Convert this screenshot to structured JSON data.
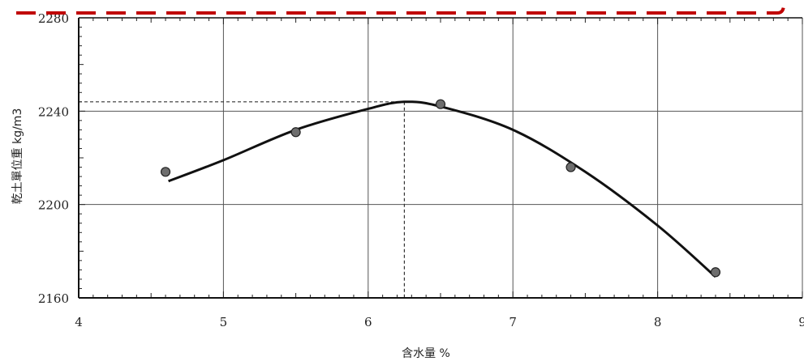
{
  "chart_data": {
    "type": "scatter",
    "xlabel": "含水量 %",
    "ylabel": "乾土單位重 kg/m3",
    "xlim": [
      4,
      9
    ],
    "ylim": [
      2160,
      2280
    ],
    "x_ticks": [
      "4",
      "5",
      "6",
      "7",
      "8",
      "9"
    ],
    "y_ticks": [
      "2160",
      "2200",
      "2240",
      "2280"
    ],
    "grid": true,
    "series": [
      {
        "points": [
          {
            "x": 4.6,
            "y": 2214
          },
          {
            "x": 5.5,
            "y": 2231
          },
          {
            "x": 6.5,
            "y": 2243
          },
          {
            "x": 7.4,
            "y": 2216
          },
          {
            "x": 8.4,
            "y": 2171
          }
        ]
      }
    ],
    "fit_curve": [
      {
        "x": 4.62,
        "y": 2210
      },
      {
        "x": 5.0,
        "y": 2219
      },
      {
        "x": 5.5,
        "y": 2232
      },
      {
        "x": 6.0,
        "y": 2241
      },
      {
        "x": 6.25,
        "y": 2244
      },
      {
        "x": 6.5,
        "y": 2242
      },
      {
        "x": 7.0,
        "y": 2232
      },
      {
        "x": 7.5,
        "y": 2214
      },
      {
        "x": 8.0,
        "y": 2191
      },
      {
        "x": 8.4,
        "y": 2169
      }
    ],
    "optimum": {
      "x": 6.25,
      "y": 2244
    },
    "colors": {
      "curve": "#111111",
      "point_fill": "#6e6e6e",
      "grid": "#555555",
      "reference_line": "#333333",
      "highlight_border": "#c00000"
    }
  }
}
